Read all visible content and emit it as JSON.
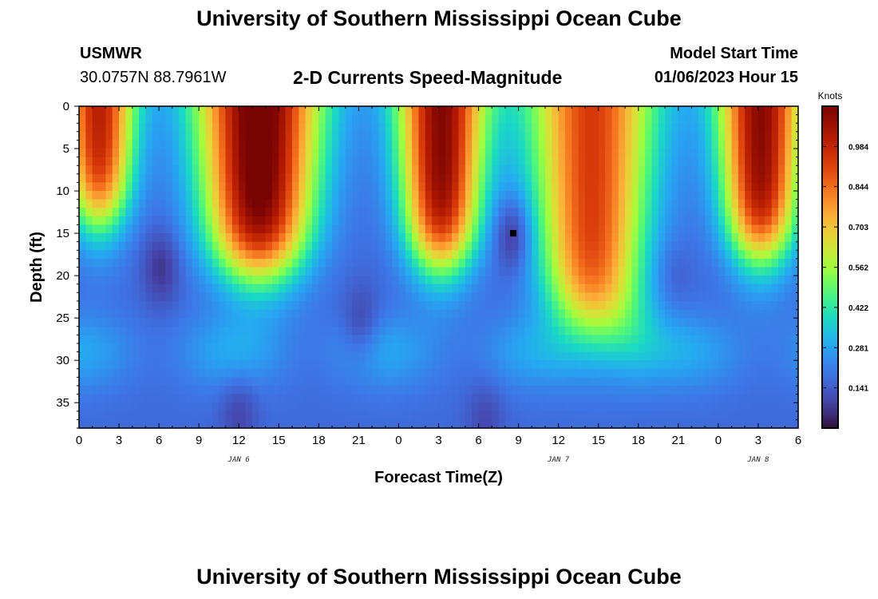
{
  "header": {
    "title": "University of Southern Mississippi Ocean Cube",
    "station_id": "USMWR",
    "coordinates": "30.0757N  88.7961W",
    "plot_title": "2-D Currents Speed-Magnitude",
    "model_start_label": "Model Start Time",
    "model_start_value": "01/06/2023 Hour 15"
  },
  "footer": {
    "title": "University of Southern Mississippi Ocean Cube"
  },
  "chart_data": {
    "type": "heatmap",
    "title": "2-D Currents Speed-Magnitude",
    "xlabel": "Forecast Time(Z)",
    "ylabel": "Depth (ft)",
    "x_range_hours": [
      0,
      54
    ],
    "x_ticks": [
      {
        "h": 0,
        "label": "0"
      },
      {
        "h": 3,
        "label": "3"
      },
      {
        "h": 6,
        "label": "6"
      },
      {
        "h": 9,
        "label": "9"
      },
      {
        "h": 12,
        "label": "12"
      },
      {
        "h": 15,
        "label": "15"
      },
      {
        "h": 18,
        "label": "18"
      },
      {
        "h": 21,
        "label": "21"
      },
      {
        "h": 24,
        "label": "0"
      },
      {
        "h": 27,
        "label": "3"
      },
      {
        "h": 30,
        "label": "6"
      },
      {
        "h": 33,
        "label": "9"
      },
      {
        "h": 36,
        "label": "12"
      },
      {
        "h": 39,
        "label": "15"
      },
      {
        "h": 42,
        "label": "18"
      },
      {
        "h": 45,
        "label": "21"
      },
      {
        "h": 48,
        "label": "0"
      },
      {
        "h": 51,
        "label": "3"
      },
      {
        "h": 54,
        "label": "6"
      }
    ],
    "date_labels": [
      {
        "h": 12,
        "label": "JAN 6"
      },
      {
        "h": 36,
        "label": "JAN 7"
      },
      {
        "h": 51,
        "label": "JAN 8"
      }
    ],
    "y_range_ft": [
      0,
      38
    ],
    "y_ticks": [
      0,
      5,
      10,
      15,
      20,
      25,
      30,
      35
    ],
    "marker": {
      "hour": 32.6,
      "depth_ft": 15
    },
    "colorbar": {
      "unit": "Knots",
      "min": 0.0,
      "max": 1.125,
      "ticks": [
        0.141,
        0.281,
        0.422,
        0.562,
        0.703,
        0.844,
        0.984
      ]
    }
  }
}
